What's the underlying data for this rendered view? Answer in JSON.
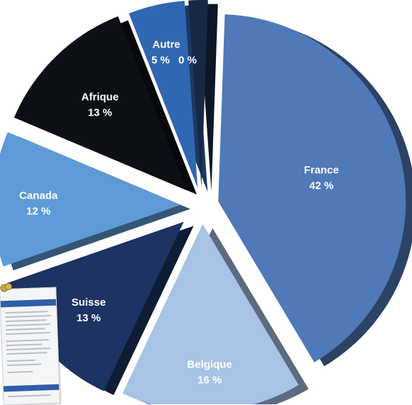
{
  "colors": {
    "France": "#4f79b8",
    "Belgique": "#a7c3e6",
    "Suisse": "#1c3363",
    "Canada": "#5e9bd6",
    "Afrique": "#0c0f16",
    "Autre": "#2f67b3",
    "zero_slice": "#172845"
  },
  "chart_data": {
    "type": "pie",
    "title": "",
    "unit": "%",
    "slices": [
      {
        "name": "France",
        "label": "France",
        "value": 42,
        "value_label": "42 %"
      },
      {
        "name": "Belgique",
        "label": "Belgique",
        "value": 16,
        "value_label": "16 %"
      },
      {
        "name": "Suisse",
        "label": "Suisse",
        "value": 13,
        "value_label": "13 %"
      },
      {
        "name": "Canada",
        "label": "Canada",
        "value": 12,
        "value_label": "12 %"
      },
      {
        "name": "Afrique",
        "label": "Afrique",
        "value": 13,
        "value_label": "13 %"
      },
      {
        "name": "Autre",
        "label": "Autre",
        "value": 5,
        "value_label": "5 %"
      },
      {
        "name": "zero",
        "label": "",
        "value": 0,
        "value_label": "0 %"
      }
    ],
    "style": "exploded 3D pie"
  }
}
